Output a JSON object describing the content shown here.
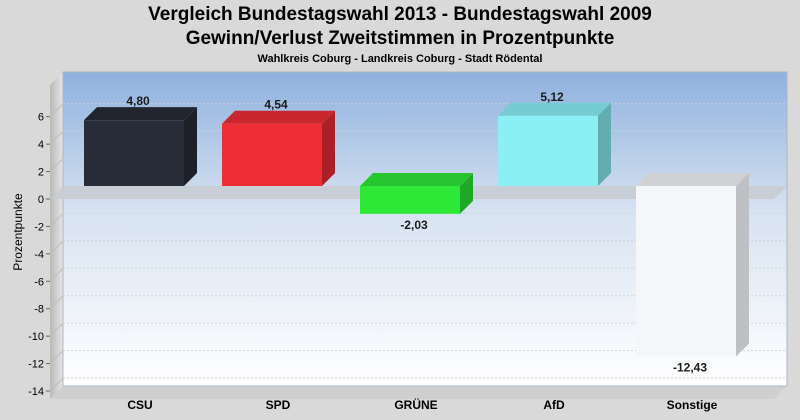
{
  "header": {
    "title_line1": "Vergleich Bundestagswahl 2013 - Bundestagswahl 2009",
    "title_line2": "Gewinn/Verlust Zweitstimmen in Prozentpunkte",
    "subtitle": "Wahlkreis Coburg - Landkreis Coburg - Stadt Rödental"
  },
  "chart_data": {
    "type": "bar",
    "title": "Vergleich Bundestagswahl 2013 - Bundestagswahl 2009 / Gewinn/Verlust Zweitstimmen in Prozentpunkte",
    "subtitle": "Wahlkreis Coburg - Landkreis Coburg - Stadt Rödental",
    "xlabel": "",
    "ylabel": "Prozentpunkte",
    "ylim": [
      -14,
      7
    ],
    "yticks": [
      6,
      4,
      2,
      0,
      -2,
      -4,
      -6,
      -8,
      -10,
      -12,
      -14
    ],
    "categories": [
      "CSU",
      "SPD",
      "GRÜNE",
      "AfD",
      "Sonstige"
    ],
    "values": [
      4.8,
      4.54,
      -2.03,
      5.12,
      -12.43
    ],
    "value_labels": [
      "4,80",
      "4,54",
      "-2,03",
      "5,12",
      "-12,43"
    ],
    "colors": [
      "#282c38",
      "#ee2d36",
      "#2ee838",
      "#8af0f6",
      "#f4f6fa"
    ],
    "grid": true,
    "legend": "none"
  }
}
